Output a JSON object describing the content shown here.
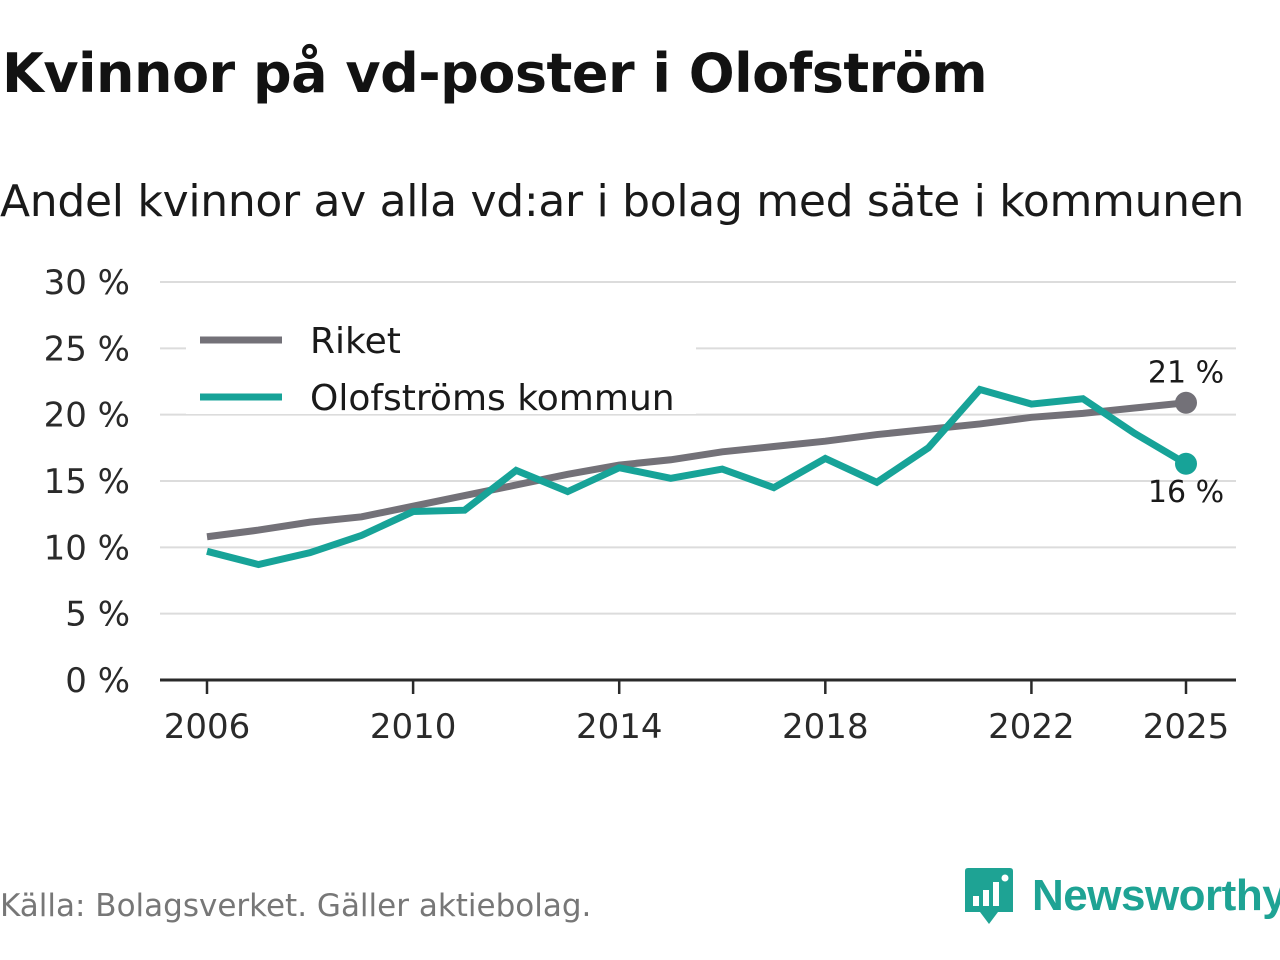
{
  "title": "Kvinnor på vd-poster i Olofström",
  "subtitle": "Andel kvinnor av alla vd:ar i bolag med säte i kommunen",
  "source": "Källa: Bolagsverket. Gäller aktiebolag.",
  "brand": {
    "name": "Newsworthy",
    "icon": "newsworthy-chart-icon",
    "color": "#1ea394"
  },
  "chart_data": {
    "type": "line",
    "title": "Kvinnor på vd-poster i Olofström",
    "subtitle": "Andel kvinnor av alla vd:ar i bolag med säte i kommunen",
    "xlabel": "",
    "ylabel": "",
    "x": [
      2006,
      2007,
      2008,
      2009,
      2010,
      2011,
      2012,
      2013,
      2014,
      2015,
      2016,
      2017,
      2018,
      2019,
      2020,
      2021,
      2022,
      2023,
      2024,
      2025
    ],
    "xlim": [
      2006,
      2025
    ],
    "ylim": [
      0,
      30
    ],
    "x_ticks": [
      {
        "value": 2006,
        "label": "2006"
      },
      {
        "value": 2010,
        "label": "2010"
      },
      {
        "value": 2014,
        "label": "2014"
      },
      {
        "value": 2018,
        "label": "2018"
      },
      {
        "value": 2022,
        "label": "2022"
      },
      {
        "value": 2025,
        "label": "2025"
      }
    ],
    "y_ticks": [
      {
        "value": 0,
        "label": "0 %"
      },
      {
        "value": 5,
        "label": "5 %"
      },
      {
        "value": 10,
        "label": "10 %"
      },
      {
        "value": 15,
        "label": "15 %"
      },
      {
        "value": 20,
        "label": "20 %"
      },
      {
        "value": 25,
        "label": "25 %"
      },
      {
        "value": 30,
        "label": "30 %"
      }
    ],
    "grid": true,
    "legend_position": "top-left",
    "series": [
      {
        "name": "Riket",
        "color": "#737178",
        "values": [
          10.8,
          11.3,
          11.9,
          12.3,
          13.1,
          13.9,
          14.7,
          15.5,
          16.2,
          16.6,
          17.2,
          17.6,
          18.0,
          18.5,
          18.9,
          19.3,
          19.8,
          20.1,
          20.5,
          20.9
        ],
        "end_label": "21 %"
      },
      {
        "name": "Olofströms kommun",
        "color": "#17a398",
        "values": [
          9.7,
          8.7,
          9.6,
          10.9,
          12.7,
          12.8,
          15.8,
          14.2,
          16.0,
          15.2,
          15.9,
          14.5,
          16.7,
          14.9,
          17.5,
          21.9,
          20.8,
          21.2,
          18.6,
          16.3
        ],
        "end_label": "16 %"
      }
    ]
  }
}
